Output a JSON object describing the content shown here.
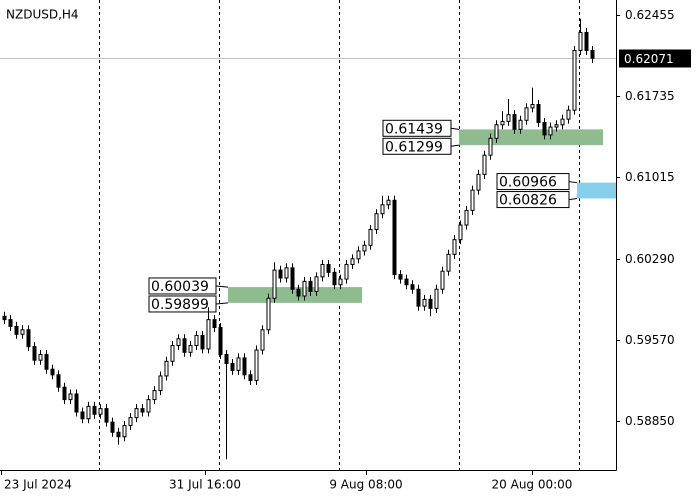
{
  "chart_data": {
    "type": "candlestick",
    "title": "NZDUSD,H4",
    "x_labels": [
      "23 Jul 2024",
      "31 Jul 16:00",
      "9 Aug 08:00",
      "20 Aug 00:00"
    ],
    "open": [
      0.5978,
      0.5975,
      0.5969,
      0.5962,
      0.5966,
      0.5951,
      0.5939,
      0.5944,
      0.5931,
      0.5926,
      0.5915,
      0.5904,
      0.5909,
      0.5893,
      0.5887,
      0.5898,
      0.5891,
      0.5896,
      0.5884,
      0.5875,
      0.5871,
      0.5881,
      0.5888,
      0.5896,
      0.5893,
      0.5904,
      0.5912,
      0.5925,
      0.5938,
      0.5952,
      0.5958,
      0.5946,
      0.5952,
      0.5961,
      0.5949,
      0.5975,
      0.5968,
      0.5944,
      0.5936,
      0.593,
      0.5941,
      0.5926,
      0.5921,
      0.5948,
      0.5966,
      0.5994,
      0.6019,
      0.6012,
      0.6021,
      0.6002,
      0.5996,
      0.6009,
      0.6,
      0.6013,
      0.6024,
      0.6017,
      0.6006,
      0.6011,
      0.6024,
      0.6029,
      0.6036,
      0.6041,
      0.6055,
      0.6069,
      0.6077,
      0.6081,
      0.6015,
      0.6011,
      0.6006,
      0.6002,
      0.5987,
      0.5993,
      0.5985,
      0.6002,
      0.6018,
      0.6033,
      0.6046,
      0.6059,
      0.6072,
      0.609,
      0.6104,
      0.6121,
      0.6136,
      0.6148,
      0.6151,
      0.6157,
      0.6144,
      0.6152,
      0.6163,
      0.6166,
      0.615,
      0.6139,
      0.6146,
      0.6148,
      0.6153,
      0.6161,
      0.6214,
      0.623,
      0.6214
    ],
    "high": [
      0.5982,
      0.5979,
      0.5973,
      0.597,
      0.597,
      0.5955,
      0.5948,
      0.5948,
      0.5935,
      0.593,
      0.5919,
      0.5913,
      0.5913,
      0.5897,
      0.5902,
      0.5902,
      0.59,
      0.59,
      0.5888,
      0.5879,
      0.5885,
      0.5892,
      0.59,
      0.59,
      0.5908,
      0.5916,
      0.5929,
      0.5942,
      0.5956,
      0.5962,
      0.5962,
      0.5956,
      0.5965,
      0.5965,
      0.5986,
      0.5979,
      0.5972,
      0.5948,
      0.594,
      0.5945,
      0.5945,
      0.593,
      0.5952,
      0.597,
      0.5998,
      0.6026,
      0.6023,
      0.6025,
      0.6025,
      0.6006,
      0.6013,
      0.6013,
      0.6017,
      0.6028,
      0.6028,
      0.6021,
      0.6015,
      0.6028,
      0.6033,
      0.604,
      0.6045,
      0.6059,
      0.6073,
      0.6085,
      0.6085,
      0.6085,
      0.6019,
      0.6015,
      0.601,
      0.6006,
      0.5997,
      0.5997,
      0.6006,
      0.6022,
      0.6037,
      0.605,
      0.6063,
      0.6076,
      0.6094,
      0.6108,
      0.6125,
      0.614,
      0.6152,
      0.616,
      0.6171,
      0.6161,
      0.6156,
      0.6167,
      0.6181,
      0.617,
      0.6154,
      0.615,
      0.6152,
      0.6157,
      0.6165,
      0.6218,
      0.6242,
      0.6234,
      0.6218
    ],
    "low": [
      0.5971,
      0.5965,
      0.5958,
      0.5958,
      0.5947,
      0.5935,
      0.5935,
      0.5927,
      0.5922,
      0.5911,
      0.59,
      0.59,
      0.5889,
      0.5883,
      0.5883,
      0.5887,
      0.5887,
      0.588,
      0.5871,
      0.5864,
      0.5867,
      0.5877,
      0.5884,
      0.5889,
      0.5889,
      0.59,
      0.5908,
      0.5921,
      0.5934,
      0.5948,
      0.5942,
      0.5942,
      0.5948,
      0.5945,
      0.5945,
      0.5964,
      0.594,
      0.5851,
      0.5926,
      0.5926,
      0.5922,
      0.5917,
      0.5917,
      0.5944,
      0.5962,
      0.599,
      0.6008,
      0.6008,
      0.5998,
      0.5992,
      0.5992,
      0.5996,
      0.5996,
      0.6009,
      0.6013,
      0.6002,
      0.6002,
      0.6007,
      0.602,
      0.6025,
      0.6032,
      0.6037,
      0.6051,
      0.6065,
      0.6073,
      0.6011,
      0.6007,
      0.6002,
      0.5998,
      0.5983,
      0.5983,
      0.5978,
      0.5981,
      0.5998,
      0.6014,
      0.6029,
      0.6042,
      0.6055,
      0.6068,
      0.6086,
      0.61,
      0.6117,
      0.6132,
      0.6144,
      0.6147,
      0.614,
      0.614,
      0.6148,
      0.6159,
      0.6146,
      0.6135,
      0.6135,
      0.6142,
      0.6144,
      0.6149,
      0.6157,
      0.621,
      0.621,
      0.6203
    ],
    "close": [
      0.5975,
      0.5969,
      0.5962,
      0.5966,
      0.5951,
      0.5939,
      0.5944,
      0.5931,
      0.5926,
      0.5915,
      0.5904,
      0.5909,
      0.5893,
      0.5887,
      0.5898,
      0.5891,
      0.5896,
      0.5884,
      0.5875,
      0.5871,
      0.5881,
      0.5888,
      0.5896,
      0.5893,
      0.5904,
      0.5912,
      0.5925,
      0.5938,
      0.5952,
      0.5958,
      0.5946,
      0.5952,
      0.5961,
      0.5949,
      0.5975,
      0.5968,
      0.5944,
      0.5936,
      0.593,
      0.5941,
      0.5926,
      0.5921,
      0.5948,
      0.5966,
      0.5994,
      0.6019,
      0.6012,
      0.6021,
      0.6002,
      0.5996,
      0.6009,
      0.6,
      0.6013,
      0.6024,
      0.6017,
      0.6006,
      0.6011,
      0.6024,
      0.6029,
      0.6036,
      0.6041,
      0.6055,
      0.6069,
      0.6077,
      0.6081,
      0.6015,
      0.6011,
      0.6006,
      0.6002,
      0.5987,
      0.5993,
      0.5985,
      0.6002,
      0.6018,
      0.6033,
      0.6046,
      0.6059,
      0.6072,
      0.609,
      0.6104,
      0.6121,
      0.6136,
      0.6148,
      0.6151,
      0.6157,
      0.6144,
      0.6152,
      0.6163,
      0.6166,
      0.615,
      0.6139,
      0.6146,
      0.6148,
      0.6153,
      0.6161,
      0.6214,
      0.623,
      0.6214,
      0.62071
    ],
    "ylim": [
      0.58415,
      0.62588
    ],
    "yticks": [
      {
        "value": 0.5885,
        "label": "0.58850"
      },
      {
        "value": 0.5957,
        "label": "0.59570"
      },
      {
        "value": 0.6029,
        "label": "0.60290"
      },
      0.61015,
      0.61735,
      0.62455
    ],
    "current_price": 0.62071,
    "zones": [
      {
        "upper": 0.60039,
        "lower": 0.59899,
        "color": "#8fbc8f"
      },
      {
        "upper": 0.61439,
        "lower": 0.61299,
        "color": "#8fbc8f"
      },
      {
        "upper": 0.60966,
        "lower": 0.60826,
        "color": "#87ceeb"
      }
    ]
  }
}
